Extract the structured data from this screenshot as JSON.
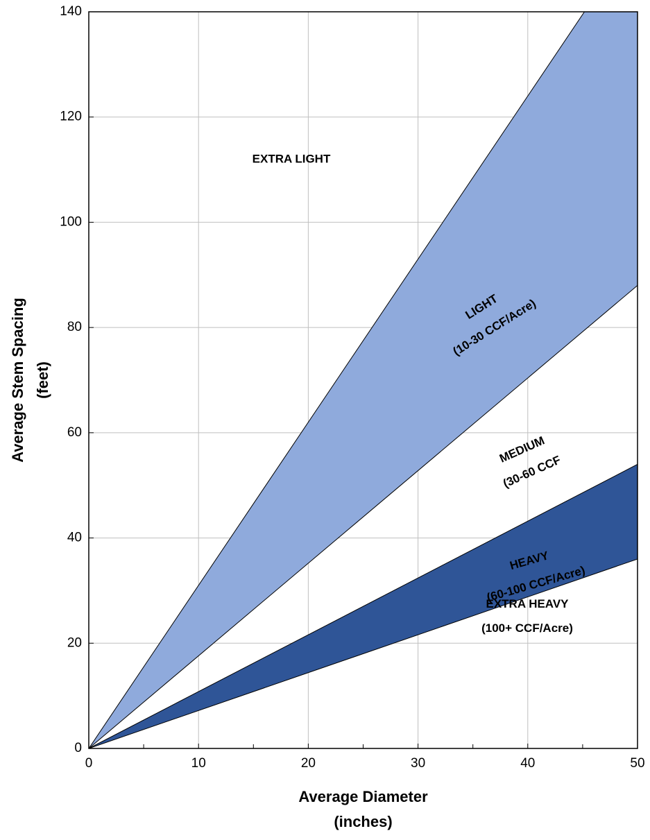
{
  "chart_data": {
    "type": "area",
    "x": [
      0,
      50
    ],
    "bands": [
      {
        "color": "#8faadc",
        "lower": [
          0,
          88
        ],
        "upper": [
          0,
          155
        ]
      },
      {
        "color": "#2f5597",
        "lower": [
          0,
          36
        ],
        "upper": [
          0,
          54
        ]
      }
    ],
    "xlim": [
      0,
      50
    ],
    "ylim": [
      0,
      140
    ],
    "xticks": [
      0,
      10,
      20,
      30,
      40,
      50
    ],
    "xminorticks": [
      5,
      15,
      25,
      35,
      45
    ],
    "yticks": [
      0,
      20,
      40,
      60,
      80,
      100,
      120,
      140
    ],
    "grid": true,
    "xlabel": [
      "Average Diameter",
      "(inches)"
    ],
    "ylabel": [
      "Average Stem Spacing",
      "(feet)"
    ],
    "annotations": [
      [
        "EXTRA LIGHT"
      ],
      [
        "LIGHT",
        "(10-30 CCF/Acre)"
      ],
      [
        "MEDIUM",
        "(30-60 CCF"
      ],
      [
        "HEAVY",
        "(60-100 CCF/Acre)"
      ],
      [
        "EXTRA HEAVY",
        "(100+ CCF/Acre)"
      ]
    ]
  }
}
